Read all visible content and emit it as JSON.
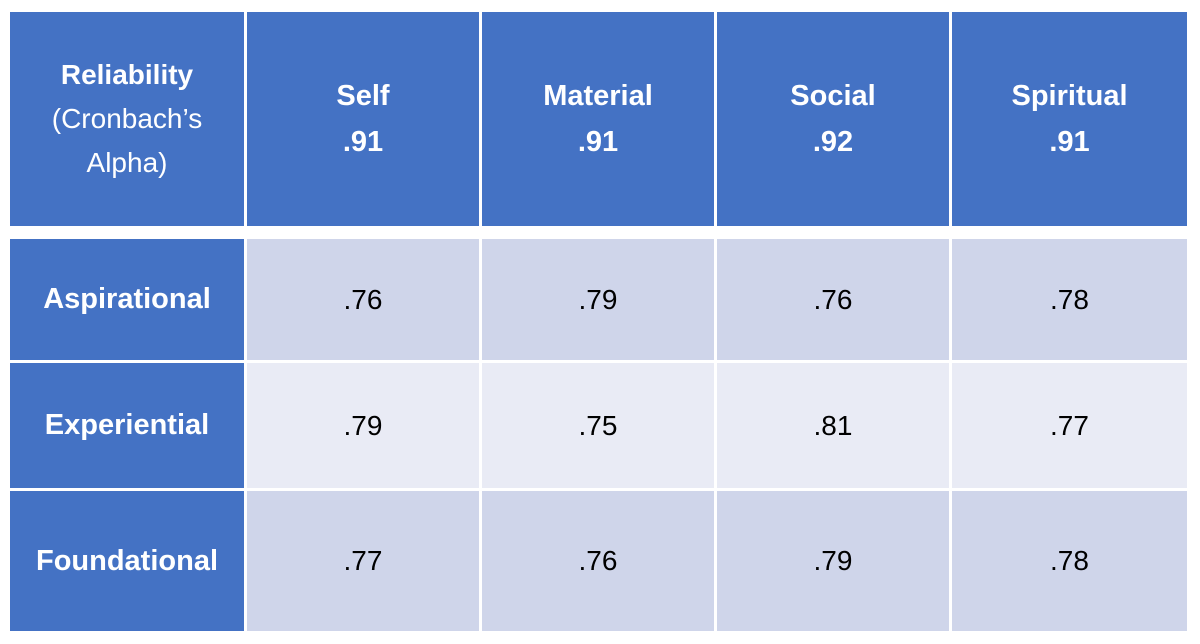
{
  "chart_data": {
    "type": "table",
    "corner_header": [
      "Reliability",
      "(Cronbach’s",
      "Alpha)"
    ],
    "columns": [
      {
        "name": "Self",
        "alpha": ".91"
      },
      {
        "name": "Material",
        "alpha": ".91"
      },
      {
        "name": "Social",
        "alpha": ".92"
      },
      {
        "name": "Spiritual",
        "alpha": ".91"
      }
    ],
    "rows": [
      {
        "label": "Aspirational",
        "values": [
          ".76",
          ".79",
          ".76",
          ".78"
        ]
      },
      {
        "label": "Experiential",
        "values": [
          ".79",
          ".75",
          ".81",
          ".77"
        ]
      },
      {
        "label": "Foundational",
        "values": [
          ".77",
          ".76",
          ".79",
          ".78"
        ]
      }
    ],
    "colors": {
      "header": "#4472C4",
      "band_dark": "#CFD5EA",
      "band_light": "#E9EBF5"
    }
  }
}
